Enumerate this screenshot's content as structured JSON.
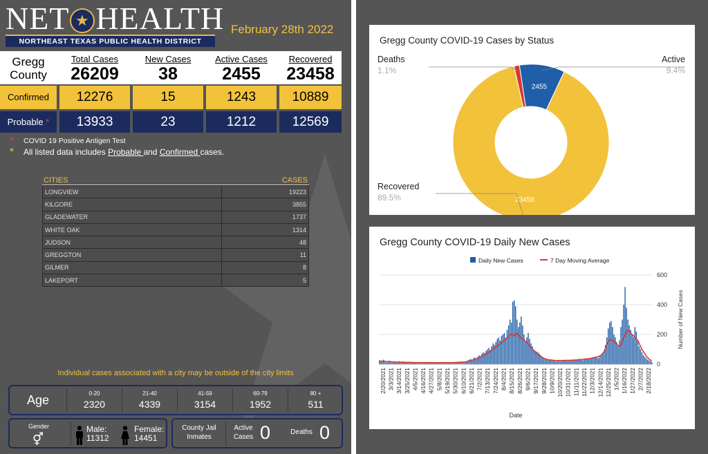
{
  "header": {
    "logo_left": "NET",
    "logo_right": "HEALTH",
    "logo_subtitle": "NORTHEAST TEXAS PUBLIC HEALTH DISTRICT",
    "date": "February 28th 2022"
  },
  "summary": {
    "county_line1": "Gregg",
    "county_line2": "County",
    "headers": [
      "Total Cases",
      "New Cases",
      "Active Cases",
      "Recovered"
    ],
    "totals": [
      "26209",
      "38",
      "2455",
      "23458"
    ],
    "confirmed_label": "Confirmed",
    "confirmed": [
      "12276",
      "15",
      "1243",
      "10889"
    ],
    "probable_label": "Probable",
    "probable_marker": "*",
    "probable": [
      "13933",
      "23",
      "1212",
      "12569"
    ]
  },
  "notes": {
    "marker1": "*",
    "note1": "COVID 19 Positive Antigen Test",
    "marker2": "*",
    "note2_prefix": "All listed data includes ",
    "note2_probable": "Probable ",
    "note2_and": " and ",
    "note2_confirmed": "Confirmed ",
    "note2_suffix": "cases."
  },
  "cities": {
    "col_city": "CITIES",
    "col_cases": "CASES",
    "rows": [
      {
        "name": "LONGVIEW",
        "cases": "19223"
      },
      {
        "name": "KILGORE",
        "cases": "3855"
      },
      {
        "name": "GLADEWATER",
        "cases": "1737"
      },
      {
        "name": "WHITE OAK",
        "cases": "1314"
      },
      {
        "name": "JUDSON",
        "cases": "48"
      },
      {
        "name": "GREGGTON",
        "cases": "11"
      },
      {
        "name": "GILMER",
        "cases": "8"
      },
      {
        "name": "LAKEPORT",
        "cases": "5"
      }
    ]
  },
  "limits_note": "Individual cases associated with a city may be outside of the city limits",
  "age": {
    "title": "Age",
    "groups": [
      {
        "range": "0-20",
        "value": "2320"
      },
      {
        "range": "21-40",
        "value": "4339"
      },
      {
        "range": "41-59",
        "value": "3154"
      },
      {
        "range": "60-79",
        "value": "1952"
      },
      {
        "range": "80 +",
        "value": "511"
      }
    ]
  },
  "gender": {
    "title": "Gender",
    "icon": "gender-symbols-icon",
    "male_label": "Male:",
    "male_value": "11312",
    "female_label": "Female:",
    "female_value": "14451"
  },
  "jail": {
    "label_line1": "County Jail",
    "label_line2": "Inmates",
    "active_line1": "Active",
    "active_line2": "Cases",
    "active_value": "0",
    "deaths_label": "Deaths",
    "deaths_value": "0"
  },
  "colors": {
    "navy": "#1c2b5e",
    "gold": "#f2c23a",
    "panel": "#555555",
    "deaths": "#d9382c",
    "active": "#1f5ea8",
    "recovered": "#f2c23a",
    "bar": "#1f5ea8",
    "moving_average": "#d9382c"
  },
  "chart_data": [
    {
      "type": "pie",
      "title": "Gregg County COVID-19 Cases by Status",
      "donut": true,
      "slices": [
        {
          "label": "Deaths",
          "value": 296,
          "percent": "1.1%"
        },
        {
          "label": "Active",
          "value": 2455,
          "percent": "9.4%",
          "data_label": "2455"
        },
        {
          "label": "Recovered",
          "value": 23458,
          "percent": "89.5%",
          "data_label": "23458"
        }
      ]
    },
    {
      "type": "bar",
      "title": "Gregg County COVID-19 Daily New Cases",
      "xlabel": "Date",
      "ylabel": "Number of New Cases",
      "ylim": [
        0,
        600
      ],
      "yticks": [
        0,
        200,
        400,
        600
      ],
      "grid": true,
      "legend": "top",
      "xtick_labels": [
        "2/20/2021",
        "3/3/2021",
        "3/14/2021",
        "3/25/2021",
        "4/5/2021",
        "4/16/2021",
        "4/27/2021",
        "5/8/2021",
        "5/19/2021",
        "5/30/2021",
        "6/10/2021",
        "6/21/2021",
        "7/2/2021",
        "7/13/2021",
        "7/24/2021",
        "8/4/2021",
        "8/15/2021",
        "8/26/2021",
        "9/6/2021",
        "9/17/2021",
        "9/28/2021",
        "10/9/2021",
        "10/20/2021",
        "10/31/2021",
        "11/11/2021",
        "11/22/2021",
        "12/3/2021",
        "12/14/2021",
        "12/25/2021",
        "1/5/2022",
        "1/16/2022",
        "1/27/2022",
        "2/7/2022",
        "2/18/2022"
      ],
      "series": [
        {
          "name": "Daily New Cases",
          "kind": "bar",
          "values": [
            25,
            18,
            20,
            30,
            15,
            12,
            18,
            22,
            14,
            10,
            12,
            15,
            16,
            10,
            20,
            12,
            14,
            18,
            10,
            12,
            11,
            13,
            15,
            12,
            10,
            9,
            11,
            14,
            12,
            10,
            13,
            12,
            11,
            9,
            10,
            12,
            14,
            11,
            10,
            8,
            9,
            12,
            10,
            11,
            13,
            12,
            10,
            9,
            11,
            10,
            8,
            12,
            14,
            13,
            11,
            12,
            10,
            16,
            18,
            14,
            12,
            15,
            20,
            25,
            30,
            35,
            28,
            40,
            45,
            38,
            50,
            60,
            55,
            70,
            80,
            75,
            90,
            100,
            110,
            95,
            120,
            140,
            130,
            150,
            170,
            180,
            160,
            190,
            200,
            210,
            180,
            230,
            260,
            300,
            280,
            420,
            430,
            390,
            300,
            250,
            280,
            320,
            260,
            200,
            150,
            180,
            210,
            170,
            140,
            120,
            100,
            90,
            85,
            80,
            70,
            60,
            50,
            45,
            40,
            35,
            30,
            32,
            28,
            25,
            30,
            22,
            20,
            28,
            24,
            20,
            26,
            30,
            28,
            25,
            22,
            24,
            26,
            30,
            28,
            25,
            30,
            32,
            35,
            30,
            28,
            26,
            30,
            35,
            40,
            38,
            35,
            42,
            45,
            48,
            50,
            45,
            40,
            55,
            60,
            70,
            90,
            130,
            180,
            240,
            280,
            290,
            250,
            200,
            180,
            150,
            120,
            160,
            250,
            300,
            400,
            520,
            380,
            300,
            260,
            230,
            200,
            180,
            250,
            220,
            160,
            120,
            100,
            80,
            60,
            50,
            40,
            30,
            25,
            20,
            15
          ],
          "approximate": true
        },
        {
          "name": "7 Day Moving Average",
          "kind": "line",
          "values": [
            22,
            21,
            20,
            20,
            19,
            18,
            18,
            18,
            17,
            16,
            15,
            15,
            14,
            14,
            14,
            13,
            13,
            13,
            13,
            12,
            12,
            12,
            12,
            12,
            11,
            11,
            11,
            11,
            11,
            11,
            11,
            11,
            11,
            11,
            11,
            11,
            11,
            11,
            11,
            10,
            10,
            10,
            10,
            10,
            11,
            11,
            11,
            11,
            11,
            11,
            11,
            11,
            11,
            11,
            12,
            12,
            12,
            13,
            13,
            14,
            14,
            15,
            17,
            19,
            21,
            23,
            26,
            29,
            32,
            35,
            39,
            43,
            48,
            53,
            58,
            63,
            69,
            75,
            81,
            87,
            94,
            101,
            108,
            115,
            123,
            131,
            138,
            145,
            152,
            160,
            167,
            175,
            185,
            195,
            205,
            195,
            190,
            200,
            210,
            195,
            185,
            175,
            170,
            165,
            155,
            145,
            135,
            120,
            110,
            100,
            90,
            80,
            70,
            62,
            56,
            50,
            45,
            40,
            36,
            33,
            31,
            29,
            28,
            27,
            26,
            25,
            25,
            25,
            25,
            25,
            25,
            25,
            25,
            26,
            26,
            26,
            26,
            27,
            27,
            28,
            28,
            29,
            30,
            31,
            32,
            33,
            34,
            35,
            36,
            37,
            38,
            40,
            42,
            44,
            46,
            48,
            52,
            56,
            62,
            72,
            85,
            105,
            130,
            150,
            160,
            165,
            160,
            155,
            145,
            135,
            125,
            120,
            130,
            150,
            180,
            200,
            220,
            230,
            220,
            210,
            200,
            190,
            180,
            170,
            160,
            140,
            120,
            100,
            85,
            70,
            55,
            45,
            35,
            28,
            22
          ],
          "approximate": true
        }
      ]
    }
  ]
}
